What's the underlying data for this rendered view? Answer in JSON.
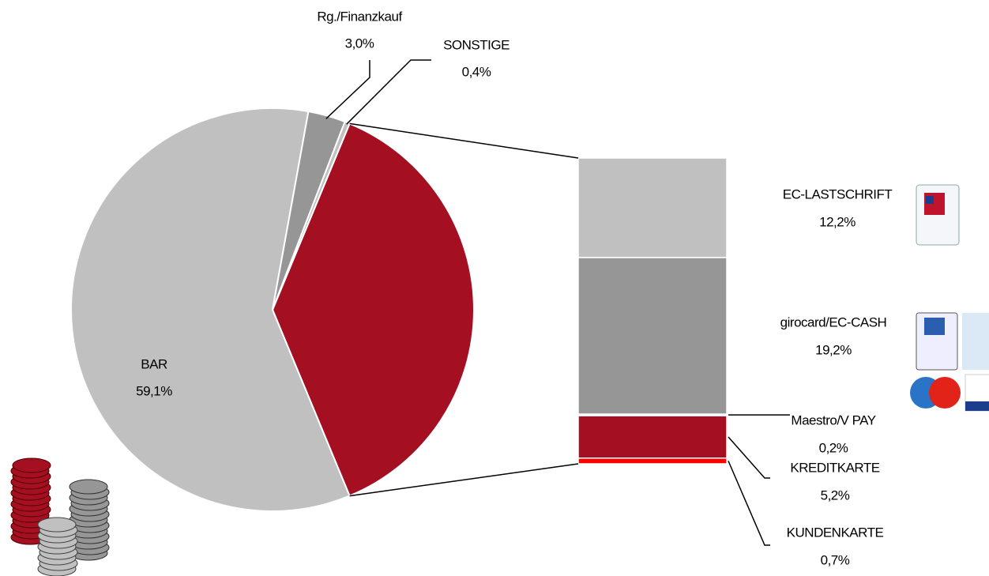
{
  "chart_data": {
    "type": "pie_of_bar",
    "pie": {
      "categories": [
        "BAR",
        "Rg./Finanzkauf",
        "SONSTIGE"
      ],
      "values": [
        59.1,
        3.0,
        0.4
      ],
      "value_labels": [
        "59,1%",
        "3,0%",
        "0,4%"
      ],
      "colors": [
        "#c0c0c0",
        "#969696",
        "#c0c0c0"
      ],
      "color": "#a50f22"
    },
    "bar": {
      "categories": [
        "EC-LASTSCHRIFT",
        "girocard/EC-CASH",
        "Maestro/V PAY",
        "KREDITKARTE",
        "KUNDENKARTE"
      ],
      "values": [
        12.2,
        19.2,
        0.2,
        5.2,
        0.7
      ],
      "value_labels": [
        "12,2%",
        "19,2%",
        "0,2%",
        "5,2%",
        "0,7%"
      ],
      "colors": [
        "#c0c0c0",
        "#969696",
        "#e0e0e0",
        "#a50f22",
        "#ff0000"
      ]
    }
  }
}
